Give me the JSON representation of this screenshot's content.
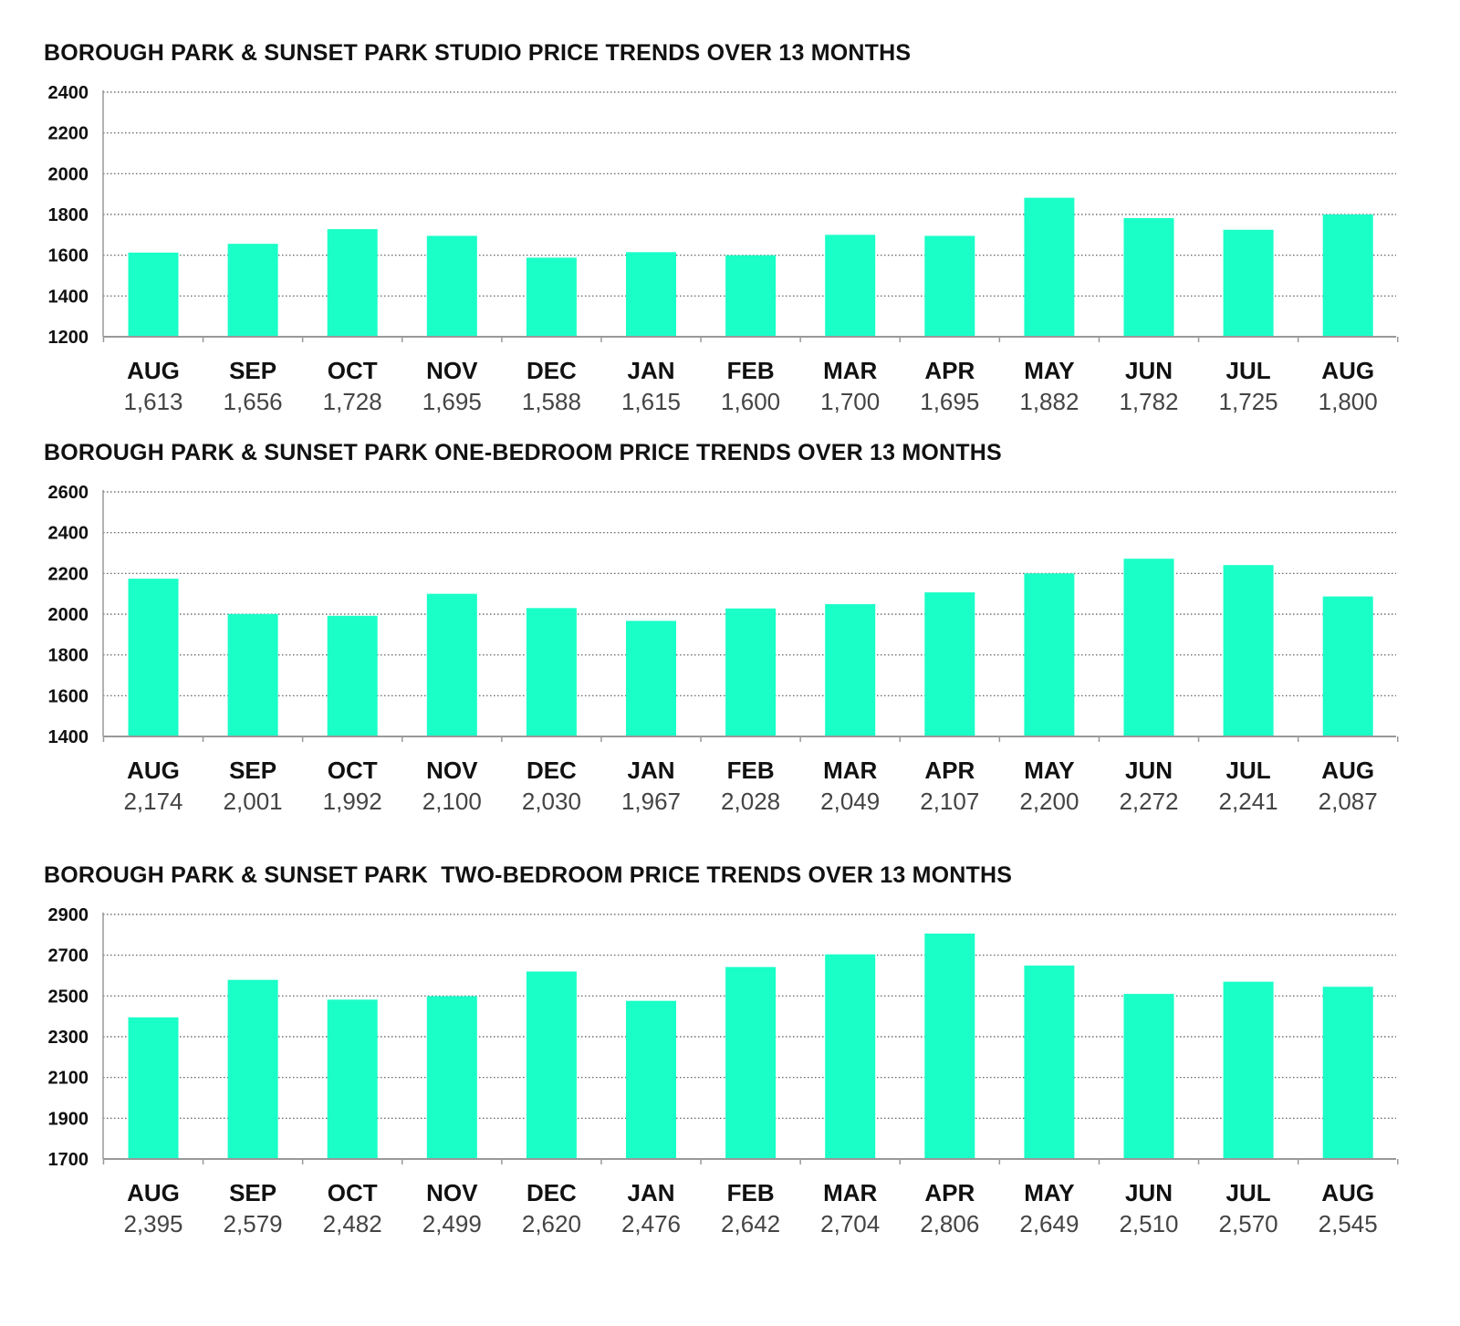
{
  "colors": {
    "bar": "#1affc7",
    "grid": "#555555",
    "axis": "#999999",
    "text": "#111111",
    "value_text": "#444444"
  },
  "chart_data": [
    {
      "type": "bar",
      "title": "BOROUGH PARK & SUNSET PARK STUDIO PRICE TRENDS OVER 13 MONTHS",
      "xlabel": "",
      "ylabel": "",
      "categories": [
        "AUG",
        "SEP",
        "OCT",
        "NOV",
        "DEC",
        "JAN",
        "FEB",
        "MAR",
        "APR",
        "MAY",
        "JUN",
        "JUL",
        "AUG"
      ],
      "values": [
        1613,
        1656,
        1728,
        1695,
        1588,
        1615,
        1600,
        1700,
        1695,
        1882,
        1782,
        1725,
        1800
      ],
      "value_labels": [
        "1,613",
        "1,656",
        "1,728",
        "1,695",
        "1,588",
        "1,615",
        "1,600",
        "1,700",
        "1,695",
        "1,882",
        "1,782",
        "1,725",
        "1,800"
      ],
      "ylim": [
        1200,
        2400
      ],
      "yticks": [
        1200,
        1400,
        1600,
        1800,
        2000,
        2200,
        2400
      ],
      "grid": true
    },
    {
      "type": "bar",
      "title": "BOROUGH PARK & SUNSET PARK ONE-BEDROOM PRICE TRENDS OVER 13 MONTHS",
      "xlabel": "",
      "ylabel": "",
      "categories": [
        "AUG",
        "SEP",
        "OCT",
        "NOV",
        "DEC",
        "JAN",
        "FEB",
        "MAR",
        "APR",
        "MAY",
        "JUN",
        "JUL",
        "AUG"
      ],
      "values": [
        2174,
        2001,
        1992,
        2100,
        2030,
        1967,
        2028,
        2049,
        2107,
        2200,
        2272,
        2241,
        2087
      ],
      "value_labels": [
        "2,174",
        "2,001",
        "1,992",
        "2,100",
        "2,030",
        "1,967",
        "2,028",
        "2,049",
        "2,107",
        "2,200",
        "2,272",
        "2,241",
        "2,087"
      ],
      "ylim": [
        1400,
        2600
      ],
      "yticks": [
        1400,
        1600,
        1800,
        2000,
        2200,
        2400,
        2600
      ],
      "grid": true
    },
    {
      "type": "bar",
      "title": "BOROUGH PARK & SUNSET PARK  TWO-BEDROOM PRICE TRENDS OVER 13 MONTHS",
      "xlabel": "",
      "ylabel": "",
      "categories": [
        "AUG",
        "SEP",
        "OCT",
        "NOV",
        "DEC",
        "JAN",
        "FEB",
        "MAR",
        "APR",
        "MAY",
        "JUN",
        "JUL",
        "AUG"
      ],
      "values": [
        2395,
        2579,
        2482,
        2499,
        2620,
        2476,
        2642,
        2704,
        2806,
        2649,
        2510,
        2570,
        2545
      ],
      "value_labels": [
        "2,395",
        "2,579",
        "2,482",
        "2,499",
        "2,620",
        "2,476",
        "2,642",
        "2,704",
        "2,806",
        "2,649",
        "2,510",
        "2,570",
        "2,545"
      ],
      "ylim": [
        1700,
        2900
      ],
      "yticks": [
        1700,
        1900,
        2100,
        2300,
        2500,
        2700,
        2900
      ],
      "grid": true
    }
  ]
}
